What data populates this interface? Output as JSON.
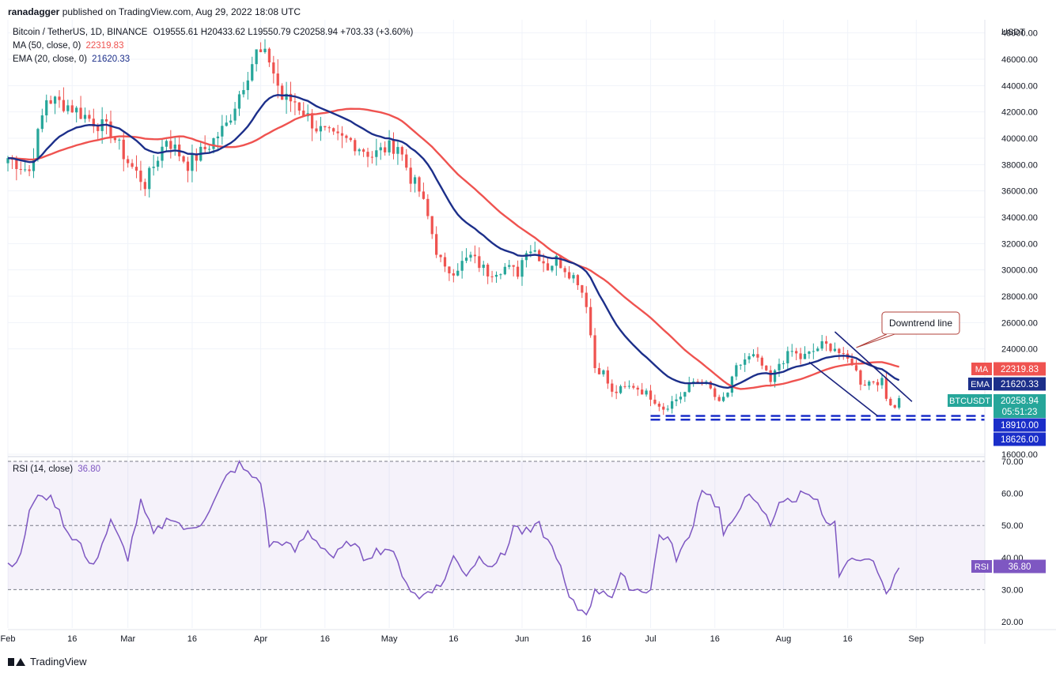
{
  "header": {
    "credit_user": "ranadagger",
    "credit_rest": " published on TradingView.com, Aug 29, 2022 18:08 UTC"
  },
  "legend": {
    "symbol": "Bitcoin / TetherUS, 1D, BINANCE",
    "ohlc": "O19555.61 H20433.62 L19550.79 C20258.94 +703.33 (+3.60%)",
    "ma_label": "MA (50, close, 0)",
    "ma_value": "22319.83",
    "ema_label": "EMA (20, close, 0)",
    "ema_value": "21620.33",
    "rsi_label": "RSI (14, close)",
    "rsi_value": "36.80"
  },
  "footer": {
    "brand": "TradingView"
  },
  "colors": {
    "up": "#26a69a",
    "down": "#ef5350",
    "ma": "#ef5350",
    "ema": "#1c2f8a",
    "rsi": "#7e57c2",
    "level": "#1a2ec9",
    "callout": "#b0403a"
  },
  "chart_data": {
    "type": "candlestick",
    "price_axis": {
      "unit": "USDT",
      "ticks": [
        "48000.00",
        "46000.00",
        "44000.00",
        "42000.00",
        "40000.00",
        "38000.00",
        "36000.00",
        "34000.00",
        "32000.00",
        "30000.00",
        "28000.00",
        "26000.00",
        "24000.00",
        "18910.00",
        "18626.00",
        "16000.00"
      ],
      "range": [
        16000,
        49000
      ]
    },
    "rsi_axis": {
      "ticks": [
        "70.00",
        "60.00",
        "50.00",
        "40.00",
        "30.00",
        "20.00"
      ],
      "range": [
        18,
        71
      ],
      "bands": [
        30,
        50,
        70
      ]
    },
    "time_axis": {
      "ticks": [
        "Feb",
        "16",
        "Mar",
        "16",
        "Apr",
        "16",
        "May",
        "16",
        "Jun",
        "16",
        "Jul",
        "16",
        "Aug",
        "16",
        "Sep"
      ],
      "tick_days": [
        0,
        15,
        28,
        43,
        59,
        74,
        89,
        104,
        120,
        135,
        150,
        165,
        181,
        196,
        212
      ]
    },
    "price_labels": {
      "ma": {
        "label": "MA",
        "value": "22319.83"
      },
      "ema": {
        "label": "EMA",
        "value": "21620.33"
      },
      "last": {
        "label": "BTCUSDT",
        "value": "20258.94",
        "countdown": "05:51:23"
      },
      "level_1": "18910.00",
      "level_2": "18626.00",
      "rsi": {
        "label": "RSI",
        "value": "36.80"
      }
    },
    "annotation": "Downtrend line",
    "support_levels": [
      18910,
      18626
    ],
    "downtrend": {
      "upper": [
        [
          193,
          25300
        ],
        [
          211,
          20000
        ]
      ],
      "lower": [
        [
          187,
          23000
        ],
        [
          203,
          18900
        ]
      ]
    },
    "close_key": [
      [
        0,
        38500
      ],
      [
        5,
        37500
      ],
      [
        9,
        43000
      ],
      [
        14,
        42500
      ],
      [
        19,
        41500
      ],
      [
        24,
        40500
      ],
      [
        28,
        38200
      ],
      [
        32,
        36500
      ],
      [
        37,
        40000
      ],
      [
        42,
        38000
      ],
      [
        47,
        39500
      ],
      [
        51,
        41000
      ],
      [
        56,
        45000
      ],
      [
        58,
        46500
      ],
      [
        61,
        46000
      ],
      [
        64,
        43000
      ],
      [
        67,
        42800
      ],
      [
        72,
        40800
      ],
      [
        76,
        40000
      ],
      [
        80,
        39800
      ],
      [
        85,
        38700
      ],
      [
        88,
        39200
      ],
      [
        91,
        39500
      ],
      [
        94,
        37000
      ],
      [
        96,
        36000
      ],
      [
        98,
        34000
      ],
      [
        100,
        31500
      ],
      [
        102,
        29900
      ],
      [
        104,
        30000
      ],
      [
        108,
        31000
      ],
      [
        112,
        29800
      ],
      [
        116,
        30200
      ],
      [
        119,
        29800
      ],
      [
        121,
        31700
      ],
      [
        123,
        31500
      ],
      [
        126,
        30200
      ],
      [
        128,
        30800
      ],
      [
        131,
        29800
      ],
      [
        133,
        29200
      ],
      [
        135,
        27500
      ],
      [
        137,
        22600
      ],
      [
        139,
        22200
      ],
      [
        141,
        20600
      ],
      [
        143,
        20900
      ],
      [
        146,
        21200
      ],
      [
        150,
        20400
      ],
      [
        153,
        19500
      ],
      [
        156,
        20200
      ],
      [
        158,
        20700
      ],
      [
        160,
        21500
      ],
      [
        162,
        21600
      ],
      [
        164,
        20900
      ],
      [
        166,
        19800
      ],
      [
        168,
        20700
      ],
      [
        170,
        22500
      ],
      [
        172,
        23200
      ],
      [
        174,
        23400
      ],
      [
        176,
        22700
      ],
      [
        178,
        21400
      ],
      [
        180,
        22900
      ],
      [
        183,
        23800
      ],
      [
        185,
        23300
      ],
      [
        187,
        23600
      ],
      [
        190,
        24300
      ],
      [
        193,
        24100
      ],
      [
        195,
        23300
      ],
      [
        197,
        23000
      ],
      [
        199,
        21500
      ],
      [
        200,
        21400
      ],
      [
        202,
        21600
      ],
      [
        204,
        21500
      ],
      [
        205,
        20200
      ],
      [
        206,
        20000
      ],
      [
        207,
        19600
      ],
      [
        208,
        20259
      ]
    ],
    "rsi_key": [
      [
        0,
        38
      ],
      [
        3,
        40
      ],
      [
        5,
        55
      ],
      [
        8,
        60
      ],
      [
        11,
        57
      ],
      [
        14,
        48
      ],
      [
        17,
        44
      ],
      [
        19,
        37
      ],
      [
        21,
        41
      ],
      [
        24,
        51
      ],
      [
        28,
        40
      ],
      [
        31,
        57
      ],
      [
        34,
        47
      ],
      [
        38,
        53
      ],
      [
        42,
        48
      ],
      [
        45,
        51
      ],
      [
        48,
        57
      ],
      [
        51,
        65
      ],
      [
        54,
        69
      ],
      [
        56,
        66
      ],
      [
        59,
        64
      ],
      [
        61,
        44
      ],
      [
        64,
        45
      ],
      [
        67,
        42
      ],
      [
        70,
        48
      ],
      [
        73,
        44
      ],
      [
        76,
        40
      ],
      [
        80,
        45
      ],
      [
        83,
        40
      ],
      [
        86,
        42
      ],
      [
        89,
        43
      ],
      [
        91,
        38
      ],
      [
        94,
        30
      ],
      [
        96,
        27
      ],
      [
        98,
        30
      ],
      [
        101,
        31
      ],
      [
        104,
        40
      ],
      [
        107,
        35
      ],
      [
        110,
        40
      ],
      [
        113,
        38
      ],
      [
        116,
        41
      ],
      [
        118,
        50
      ],
      [
        120,
        48
      ],
      [
        122,
        48
      ],
      [
        124,
        50
      ],
      [
        126,
        45
      ],
      [
        128,
        41
      ],
      [
        131,
        27
      ],
      [
        133,
        24
      ],
      [
        135,
        23
      ],
      [
        137,
        29
      ],
      [
        139,
        30
      ],
      [
        141,
        28
      ],
      [
        143,
        34
      ],
      [
        146,
        30
      ],
      [
        150,
        30
      ],
      [
        152,
        47
      ],
      [
        154,
        46
      ],
      [
        156,
        40
      ],
      [
        159,
        46
      ],
      [
        162,
        62
      ],
      [
        164,
        59
      ],
      [
        166,
        55
      ],
      [
        167,
        47
      ],
      [
        169,
        50
      ],
      [
        172,
        60
      ],
      [
        174,
        57
      ],
      [
        176,
        55
      ],
      [
        178,
        50
      ],
      [
        180,
        58
      ],
      [
        183,
        57
      ],
      [
        185,
        60
      ],
      [
        187,
        61
      ],
      [
        189,
        57
      ],
      [
        191,
        50
      ],
      [
        193,
        50
      ],
      [
        194,
        33
      ],
      [
        196,
        38
      ],
      [
        198,
        40
      ],
      [
        200,
        38
      ],
      [
        201,
        41
      ],
      [
        202,
        39
      ],
      [
        203,
        34
      ],
      [
        205,
        30
      ],
      [
        206,
        32
      ],
      [
        208,
        36.8
      ]
    ]
  }
}
